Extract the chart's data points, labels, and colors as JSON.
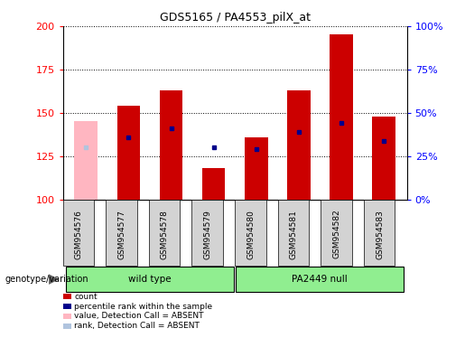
{
  "title": "GDS5165 / PA4553_pilX_at",
  "samples": [
    "GSM954576",
    "GSM954577",
    "GSM954578",
    "GSM954579",
    "GSM954580",
    "GSM954581",
    "GSM954582",
    "GSM954583"
  ],
  "count_values": [
    145,
    154,
    163,
    118,
    136,
    163,
    195,
    148
  ],
  "percentile_values": [
    130,
    136,
    141,
    130,
    129,
    139,
    144,
    134
  ],
  "absent_flags": [
    true,
    false,
    false,
    false,
    false,
    false,
    false,
    false
  ],
  "bar_bottom": 100,
  "ylim_left": [
    100,
    200
  ],
  "ylim_right": [
    0,
    100
  ],
  "yticks_left": [
    100,
    125,
    150,
    175,
    200
  ],
  "yticks_right": [
    0,
    25,
    50,
    75,
    100
  ],
  "yticklabels_right": [
    "0%",
    "25%",
    "50%",
    "75%",
    "100%"
  ],
  "bar_color_present": "#cc0000",
  "bar_color_absent": "#ffb6c1",
  "dot_color_present": "#00008B",
  "dot_color_absent_rank": "#b0c4de",
  "group_spans": [
    {
      "name": "wild type",
      "start": 0,
      "end": 3
    },
    {
      "name": "PA2449 null",
      "start": 4,
      "end": 7
    }
  ],
  "group_color": "#90EE90",
  "group_label": "genotype/variation",
  "legend_items": [
    {
      "label": "count",
      "color": "#cc0000"
    },
    {
      "label": "percentile rank within the sample",
      "color": "#00008B"
    },
    {
      "label": "value, Detection Call = ABSENT",
      "color": "#ffb6c1"
    },
    {
      "label": "rank, Detection Call = ABSENT",
      "color": "#b0c4de"
    }
  ]
}
